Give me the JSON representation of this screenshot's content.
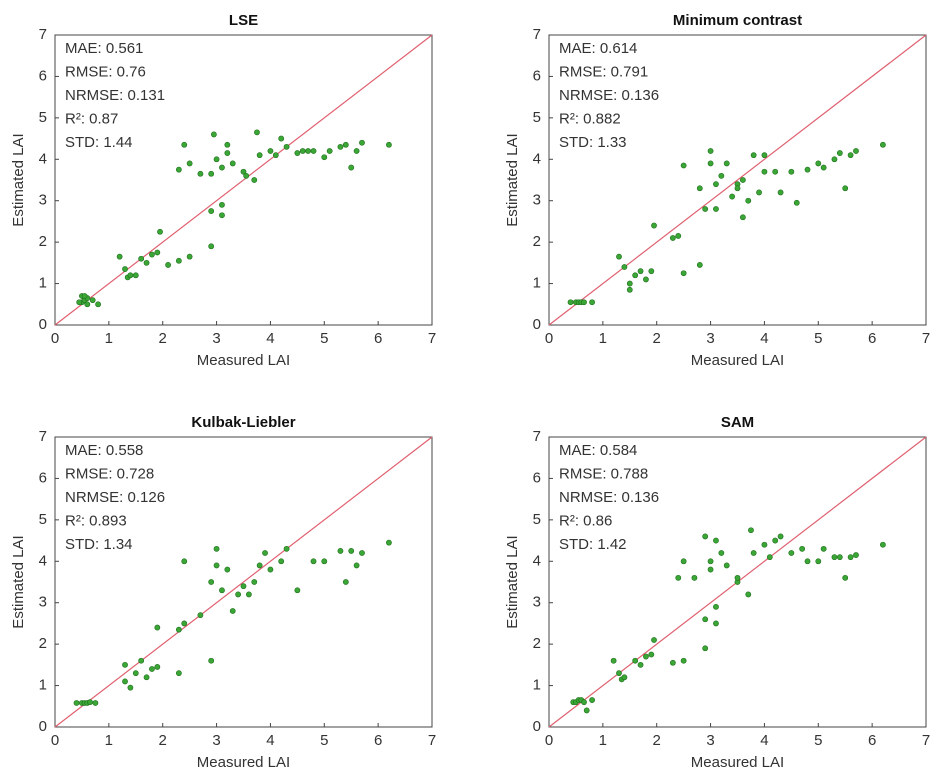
{
  "chart_data": [
    {
      "type": "scatter",
      "title": "LSE",
      "xlabel": "Measured LAI",
      "ylabel": "Estimated LAI",
      "stats": [
        "MAE: 0.561",
        "RMSE: 0.76",
        "NRMSE: 0.131",
        "R²: 0.87",
        "STD: 1.44"
      ],
      "xlim": [
        0,
        7
      ],
      "ylim": [
        0,
        7
      ],
      "xticks": [
        0,
        1,
        2,
        3,
        4,
        5,
        6,
        7
      ],
      "yticks": [
        0,
        1,
        2,
        3,
        4,
        5,
        6,
        7
      ],
      "color": "#3aa635",
      "reference_line_color": "#e06070",
      "x": [
        0.5,
        0.55,
        0.6,
        0.5,
        0.6,
        0.45,
        0.7,
        0.55,
        0.8,
        1.2,
        1.3,
        1.35,
        1.4,
        1.6,
        1.7,
        1.8,
        1.9,
        1.5,
        1.95,
        2.1,
        2.3,
        2.5,
        2.9,
        2.9,
        3.1,
        3.1,
        2.3,
        2.4,
        2.5,
        2.7,
        2.9,
        2.95,
        3.0,
        3.1,
        3.2,
        3.2,
        3.3,
        3.5,
        3.55,
        3.7,
        3.75,
        3.8,
        4.0,
        4.1,
        4.2,
        4.3,
        4.5,
        4.6,
        4.7,
        4.8,
        5.0,
        5.1,
        5.3,
        5.4,
        5.5,
        5.6,
        5.7,
        6.2
      ],
      "y": [
        0.55,
        0.6,
        0.65,
        0.7,
        0.5,
        0.55,
        0.6,
        0.7,
        0.5,
        1.65,
        1.35,
        1.15,
        1.2,
        1.6,
        1.5,
        1.7,
        1.75,
        1.2,
        2.25,
        1.45,
        1.55,
        1.65,
        1.9,
        2.75,
        2.65,
        2.9,
        3.75,
        4.35,
        3.9,
        3.65,
        3.65,
        4.6,
        4.0,
        3.8,
        4.35,
        4.15,
        3.9,
        3.7,
        3.6,
        3.5,
        4.65,
        4.1,
        4.2,
        4.1,
        4.5,
        4.3,
        4.15,
        4.2,
        4.2,
        4.2,
        4.05,
        4.2,
        4.3,
        4.35,
        3.8,
        4.2,
        4.4,
        4.35
      ]
    },
    {
      "type": "scatter",
      "title": "Minimum contrast",
      "xlabel": "Measured LAI",
      "ylabel": "Estimated LAI",
      "stats": [
        "MAE: 0.614",
        "RMSE: 0.791",
        "NRMSE: 0.136",
        "R²: 0.882",
        "STD: 1.33"
      ],
      "xlim": [
        0,
        7
      ],
      "ylim": [
        0,
        7
      ],
      "xticks": [
        0,
        1,
        2,
        3,
        4,
        5,
        6,
        7
      ],
      "yticks": [
        0,
        1,
        2,
        3,
        4,
        5,
        6,
        7
      ],
      "color": "#3aa635",
      "reference_line_color": "#e06070",
      "x": [
        0.4,
        0.5,
        0.55,
        0.6,
        0.65,
        0.8,
        1.3,
        1.4,
        1.5,
        1.5,
        1.6,
        1.7,
        1.8,
        1.9,
        1.95,
        2.3,
        2.4,
        2.5,
        2.5,
        2.8,
        2.8,
        2.9,
        3.0,
        3.0,
        3.1,
        3.1,
        3.2,
        3.3,
        3.4,
        3.5,
        3.5,
        3.6,
        3.6,
        3.7,
        3.8,
        3.9,
        4.0,
        4.0,
        4.2,
        4.3,
        4.5,
        4.6,
        4.8,
        5.0,
        5.1,
        5.3,
        5.4,
        5.5,
        5.6,
        5.7,
        6.2
      ],
      "y": [
        0.55,
        0.55,
        0.55,
        0.55,
        0.55,
        0.55,
        1.65,
        1.4,
        0.85,
        1.0,
        1.2,
        1.3,
        1.1,
        1.3,
        2.4,
        2.1,
        2.15,
        1.25,
        3.85,
        1.45,
        3.3,
        2.8,
        4.2,
        3.9,
        3.4,
        2.8,
        3.6,
        3.9,
        3.1,
        3.4,
        3.3,
        2.6,
        3.5,
        3.0,
        4.1,
        3.2,
        4.1,
        3.7,
        3.7,
        3.2,
        3.7,
        2.95,
        3.75,
        3.9,
        3.8,
        4.0,
        4.15,
        3.3,
        4.1,
        4.2,
        4.35
      ]
    },
    {
      "type": "scatter",
      "title": "Kulbak-Liebler",
      "xlabel": "Measured LAI",
      "ylabel": "Estimated LAI",
      "stats": [
        "MAE: 0.558",
        "RMSE: 0.728",
        "NRMSE: 0.126",
        "R²: 0.893",
        "STD: 1.34"
      ],
      "xlim": [
        0,
        7
      ],
      "ylim": [
        0,
        7
      ],
      "xticks": [
        0,
        1,
        2,
        3,
        4,
        5,
        6,
        7
      ],
      "yticks": [
        0,
        1,
        2,
        3,
        4,
        5,
        6,
        7
      ],
      "color": "#3aa635",
      "reference_line_color": "#e06070",
      "x": [
        0.4,
        0.5,
        0.55,
        0.6,
        0.65,
        0.75,
        1.3,
        1.3,
        1.4,
        1.5,
        1.6,
        1.7,
        1.8,
        1.9,
        1.9,
        2.3,
        2.3,
        2.4,
        2.4,
        2.7,
        2.9,
        2.9,
        3.0,
        3.0,
        3.1,
        3.2,
        3.3,
        3.4,
        3.5,
        3.6,
        3.7,
        3.8,
        3.9,
        4.0,
        4.2,
        4.3,
        4.5,
        4.8,
        5.0,
        5.3,
        5.4,
        5.5,
        5.6,
        5.7,
        6.2
      ],
      "y": [
        0.58,
        0.58,
        0.58,
        0.58,
        0.6,
        0.58,
        1.5,
        1.1,
        0.95,
        1.3,
        1.6,
        1.2,
        1.4,
        1.45,
        2.4,
        1.3,
        2.35,
        2.5,
        4.0,
        2.7,
        1.6,
        3.5,
        4.3,
        3.9,
        3.3,
        3.8,
        2.8,
        3.2,
        3.4,
        3.2,
        3.5,
        3.9,
        4.2,
        3.8,
        4.0,
        4.3,
        3.3,
        4.0,
        4.0,
        4.25,
        3.5,
        4.25,
        3.9,
        4.2,
        4.45
      ]
    },
    {
      "type": "scatter",
      "title": "SAM",
      "xlabel": "Measured LAI",
      "ylabel": "Estimated LAI",
      "stats": [
        "MAE: 0.584",
        "RMSE: 0.788",
        "NRMSE: 0.136",
        "R²: 0.86",
        "STD: 1.42"
      ],
      "xlim": [
        0,
        7
      ],
      "ylim": [
        0,
        7
      ],
      "xticks": [
        0,
        1,
        2,
        3,
        4,
        5,
        6,
        7
      ],
      "yticks": [
        0,
        1,
        2,
        3,
        4,
        5,
        6,
        7
      ],
      "color": "#3aa635",
      "reference_line_color": "#e06070",
      "x": [
        0.45,
        0.5,
        0.55,
        0.6,
        0.65,
        0.7,
        0.8,
        1.2,
        1.3,
        1.35,
        1.4,
        1.6,
        1.7,
        1.8,
        1.9,
        1.95,
        2.3,
        2.5,
        2.9,
        2.9,
        3.1,
        3.1,
        2.4,
        2.5,
        2.7,
        2.9,
        3.0,
        3.0,
        3.1,
        3.2,
        3.3,
        3.5,
        3.5,
        3.7,
        3.75,
        3.8,
        4.0,
        4.1,
        4.2,
        4.3,
        4.5,
        4.7,
        4.8,
        5.0,
        5.1,
        5.3,
        5.4,
        5.5,
        5.6,
        5.7,
        6.2
      ],
      "y": [
        0.6,
        0.6,
        0.65,
        0.65,
        0.6,
        0.4,
        0.65,
        1.6,
        1.3,
        1.15,
        1.2,
        1.6,
        1.5,
        1.7,
        1.75,
        2.1,
        1.55,
        1.6,
        1.9,
        2.6,
        2.5,
        2.9,
        3.6,
        4.0,
        3.6,
        4.6,
        4.0,
        3.8,
        4.5,
        4.2,
        3.9,
        3.5,
        3.6,
        3.2,
        4.75,
        4.2,
        4.4,
        4.1,
        4.5,
        4.6,
        4.2,
        4.3,
        4.0,
        4.0,
        4.3,
        4.1,
        4.1,
        3.6,
        4.1,
        4.15,
        4.4
      ]
    }
  ]
}
